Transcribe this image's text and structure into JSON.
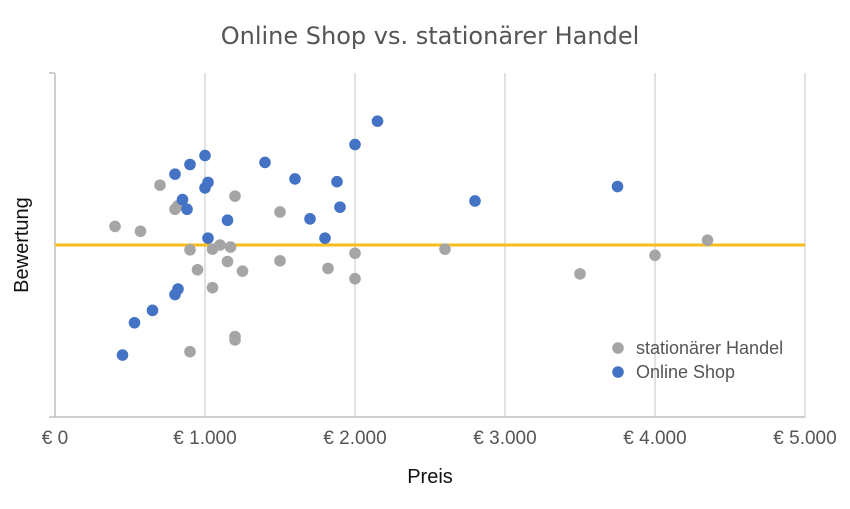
{
  "chart_data": {
    "type": "scatter",
    "title": "Online Shop vs. stationärer Handel",
    "xlabel": "Preis",
    "ylabel": "Bewertung",
    "xlim": [
      0,
      5000
    ],
    "ylim": [
      0,
      5
    ],
    "x_ticks": [
      0,
      1000,
      2000,
      3000,
      4000,
      5000
    ],
    "x_tick_labels": [
      "€ 0",
      "€ 1.000",
      "€ 2.000",
      "€ 3.000",
      "€ 4.000",
      "€ 5.000"
    ],
    "y_axis_tick_labels_visible": false,
    "grid": "vertical",
    "legend_position": "bottom-right",
    "reference_line": {
      "y": 2.5,
      "color": "#F5BE1E"
    },
    "series": [
      {
        "name": "stationärer Handel",
        "color": "#A5A5A5",
        "points": [
          [
            400,
            2.77
          ],
          [
            570,
            2.7
          ],
          [
            700,
            3.37
          ],
          [
            800,
            3.02
          ],
          [
            820,
            3.07
          ],
          [
            900,
            2.43
          ],
          [
            950,
            2.14
          ],
          [
            1050,
            2.44
          ],
          [
            1050,
            1.88
          ],
          [
            1100,
            2.5
          ],
          [
            1150,
            2.26
          ],
          [
            1170,
            2.47
          ],
          [
            1200,
            3.21
          ],
          [
            1250,
            2.12
          ],
          [
            1500,
            2.98
          ],
          [
            1500,
            2.27
          ],
          [
            1820,
            2.16
          ],
          [
            2000,
            2.38
          ],
          [
            2000,
            2.01
          ],
          [
            2600,
            2.44
          ],
          [
            3500,
            2.08
          ],
          [
            4000,
            2.35
          ],
          [
            4350,
            2.57
          ],
          [
            1200,
            1.17
          ],
          [
            1200,
            1.12
          ],
          [
            900,
            0.95
          ]
        ]
      },
      {
        "name": "Online Shop",
        "color": "#4472C4",
        "points": [
          [
            450,
            0.9
          ],
          [
            530,
            1.37
          ],
          [
            650,
            1.55
          ],
          [
            800,
            1.78
          ],
          [
            820,
            1.86
          ],
          [
            800,
            3.53
          ],
          [
            900,
            3.67
          ],
          [
            1000,
            3.8
          ],
          [
            1000,
            3.33
          ],
          [
            1020,
            3.41
          ],
          [
            850,
            3.16
          ],
          [
            880,
            3.02
          ],
          [
            1150,
            2.86
          ],
          [
            1020,
            2.6
          ],
          [
            1400,
            3.7
          ],
          [
            1600,
            3.46
          ],
          [
            1700,
            2.88
          ],
          [
            1800,
            2.6
          ],
          [
            1880,
            3.42
          ],
          [
            1900,
            3.05
          ],
          [
            2000,
            3.96
          ],
          [
            2150,
            4.3
          ],
          [
            2800,
            3.14
          ],
          [
            3750,
            3.35
          ]
        ]
      }
    ]
  }
}
